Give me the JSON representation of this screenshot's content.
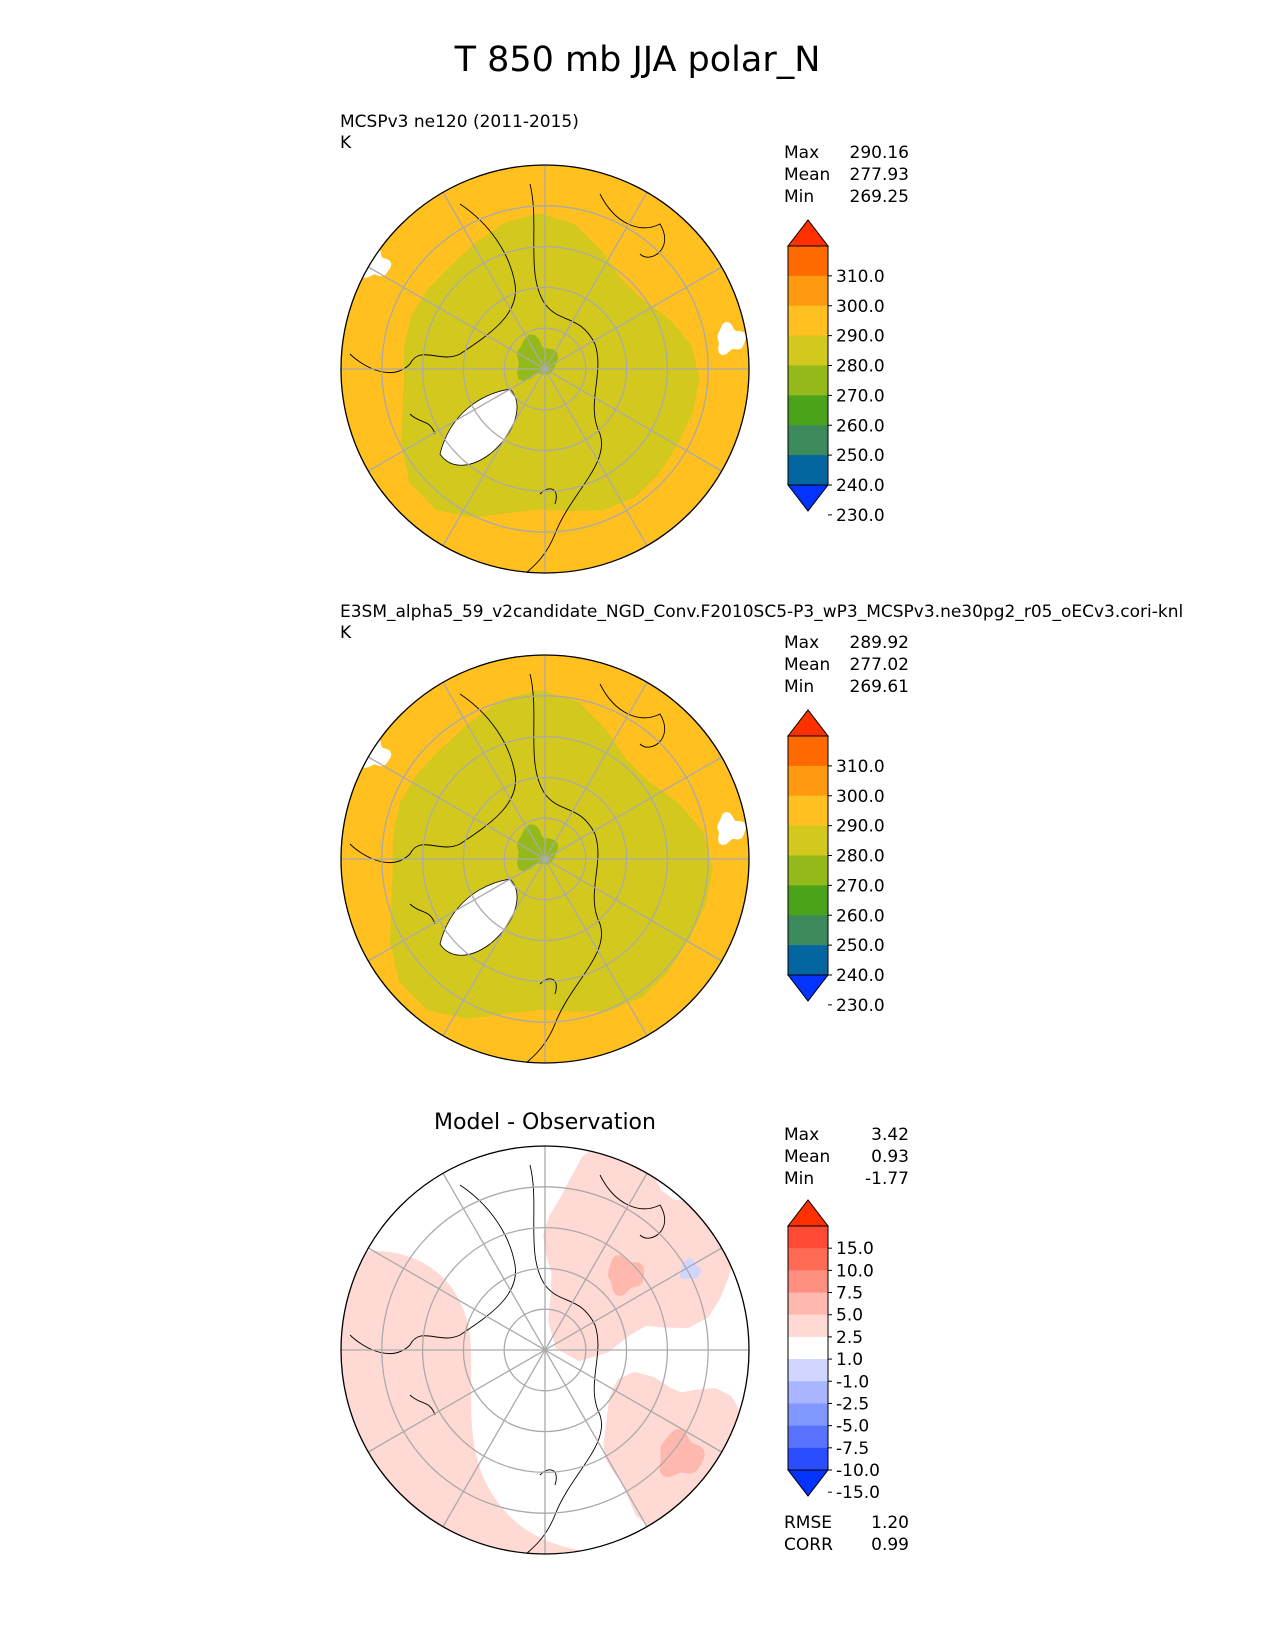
{
  "figure_title": "T 850 mb JJA polar_N",
  "colors": {
    "abs_levels": [
      "#0433ff",
      "#0466a0",
      "#3d8a5c",
      "#4aa318",
      "#93b91a",
      "#d3c81e",
      "#ffc020",
      "#ff9a10",
      "#ff6a00",
      "#ff3000"
    ],
    "diff_levels": [
      "#0433ff",
      "#2a4dff",
      "#5a73ff",
      "#8098ff",
      "#a8b5ff",
      "#d0d6ff",
      "#ffffff",
      "#ffd9d4",
      "#ffb8ae",
      "#ff9080",
      "#ff6a55",
      "#ff4a35",
      "#ff3000"
    ],
    "land_outline": "#000000",
    "grid": "#aaaaaa"
  },
  "chart_data": [
    {
      "type": "heatmap",
      "panel": "test",
      "title_line1": "MCSPv3 ne120 (2011-2015)",
      "title_line2": "K",
      "stats": [
        {
          "label": "Max",
          "value": "290.16"
        },
        {
          "label": "Mean",
          "value": "277.93"
        },
        {
          "label": "Min",
          "value": "269.25"
        }
      ],
      "colorbar_ticks": [
        "310.0",
        "300.0",
        "290.0",
        "280.0",
        "270.0",
        "260.0",
        "250.0",
        "240.0",
        "230.0"
      ],
      "pattern": "abs_a"
    },
    {
      "type": "heatmap",
      "panel": "reference",
      "title_line1": "E3SM_alpha5_59_v2candidate_NGD_Conv.F2010SC5-P3_wP3_MCSPv3.ne30pg2_r05_oECv3.cori-knl",
      "title_line2": "K",
      "stats": [
        {
          "label": "Max",
          "value": "289.92"
        },
        {
          "label": "Mean",
          "value": "277.02"
        },
        {
          "label": "Min",
          "value": "269.61"
        }
      ],
      "colorbar_ticks": [
        "310.0",
        "300.0",
        "290.0",
        "280.0",
        "270.0",
        "260.0",
        "250.0",
        "240.0",
        "230.0"
      ],
      "pattern": "abs_b"
    },
    {
      "type": "heatmap",
      "panel": "difference",
      "title": "Model - Observation",
      "stats": [
        {
          "label": "Max",
          "value": "3.42"
        },
        {
          "label": "Mean",
          "value": "0.93"
        },
        {
          "label": "Min",
          "value": "-1.77"
        }
      ],
      "colorbar_ticks": [
        "15.0",
        "10.0",
        "7.5",
        "5.0",
        "2.5",
        "1.0",
        "-1.0",
        "-2.5",
        "-5.0",
        "-7.5",
        "-10.0",
        "-15.0"
      ],
      "metrics": [
        {
          "label": "RMSE",
          "value": "1.20"
        },
        {
          "label": "CORR",
          "value": "0.99"
        }
      ],
      "pattern": "diff"
    }
  ]
}
